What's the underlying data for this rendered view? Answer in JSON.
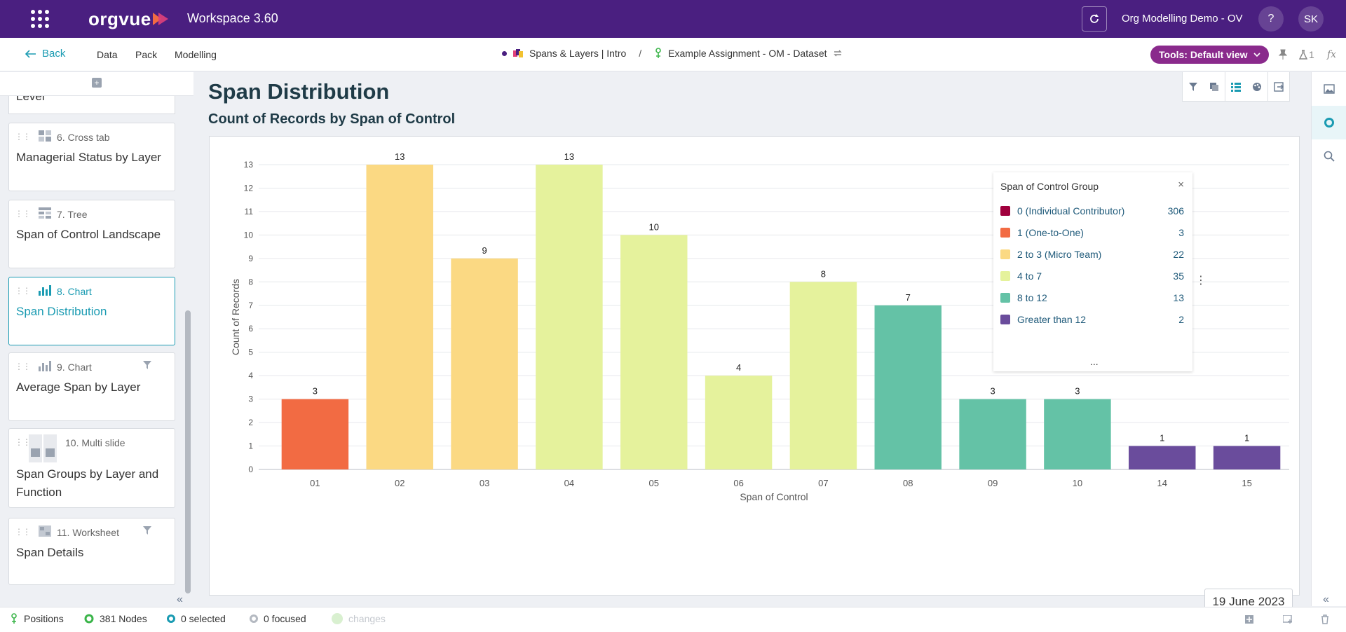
{
  "topbar": {
    "logo": "orgvue",
    "workspace": "Workspace  3.60",
    "org_name": "Org Modelling Demo - OV",
    "help_label": "?",
    "avatar_initials": "SK"
  },
  "navbar": {
    "back_label": "Back",
    "menu": [
      "Data",
      "Pack",
      "Modelling"
    ],
    "breadcrumb_1": "Spans & Layers | Intro",
    "breadcrumb_sep": "/",
    "breadcrumb_2": "Example Assignment - OM - Dataset",
    "tools_label": "Tools: Default view",
    "flask_count": "1",
    "fx_label": "fx"
  },
  "sidebar": {
    "partial_title": "Level",
    "slides": [
      {
        "type": "6. Cross tab",
        "title": "Managerial Status by Layer",
        "icon": "crosstab-icon",
        "filtered": false,
        "active": false
      },
      {
        "type": "7. Tree",
        "title": "Span of Control Landscape",
        "icon": "tree-icon",
        "filtered": false,
        "active": false
      },
      {
        "type": "8. Chart",
        "title": "Span Distribution",
        "icon": "chart-icon",
        "filtered": false,
        "active": true
      },
      {
        "type": "9. Chart",
        "title": "Average Span by Layer",
        "icon": "chart-icon",
        "filtered": true,
        "active": false
      },
      {
        "type": "10. Multi slide",
        "title": "Span Groups by Layer and Function",
        "icon": "multi-slide-icon",
        "filtered": false,
        "active": false
      },
      {
        "type": "11. Worksheet",
        "title": "Span Details",
        "icon": "worksheet-icon",
        "filtered": true,
        "active": false
      }
    ]
  },
  "main": {
    "page_title": "Span Distribution"
  },
  "chart_data": {
    "type": "bar",
    "title": "Count of Records by Span of Control",
    "xlabel": "Span of Control",
    "ylabel": "Count of Records",
    "ylim": [
      0,
      13
    ],
    "yticks": [
      0,
      1,
      2,
      3,
      4,
      5,
      6,
      7,
      8,
      9,
      10,
      11,
      12,
      13
    ],
    "grid": true,
    "categories": [
      "01",
      "02",
      "03",
      "04",
      "05",
      "06",
      "07",
      "08",
      "09",
      "10",
      "14",
      "15"
    ],
    "values": [
      3,
      13,
      9,
      13,
      10,
      4,
      8,
      7,
      3,
      3,
      1,
      1
    ],
    "bar_colors": [
      "#f26b43",
      "#fbd983",
      "#fbd983",
      "#e5f29c",
      "#e5f29c",
      "#e5f29c",
      "#e5f29c",
      "#64c2a6",
      "#64c2a6",
      "#64c2a6",
      "#6a4c9c",
      "#6a4c9c"
    ],
    "legend": {
      "title": "Span of Control Group",
      "placement": "top-right",
      "items": [
        {
          "label": "0 (Individual Contributor)",
          "count": "306",
          "color": "#a0003d"
        },
        {
          "label": "1 (One-to-One)",
          "count": "3",
          "color": "#f26b43"
        },
        {
          "label": "2 to 3 (Micro Team)",
          "count": "22",
          "color": "#fbd983"
        },
        {
          "label": "4 to 7",
          "count": "35",
          "color": "#e5f29c"
        },
        {
          "label": "8 to 12",
          "count": "13",
          "color": "#64c2a6"
        },
        {
          "label": "Greater than 12",
          "count": "2",
          "color": "#6a4c9c"
        }
      ],
      "more": "..."
    }
  },
  "date_label": "19 June 2023",
  "statusbar": {
    "positions": "Positions",
    "nodes": "381 Nodes",
    "selected": "0 selected",
    "focused": "0 focused",
    "changes": "changes"
  },
  "colors": {
    "brand": "#4a1f80",
    "accent": "#1a9bb2",
    "tools": "#8a2a8c"
  }
}
